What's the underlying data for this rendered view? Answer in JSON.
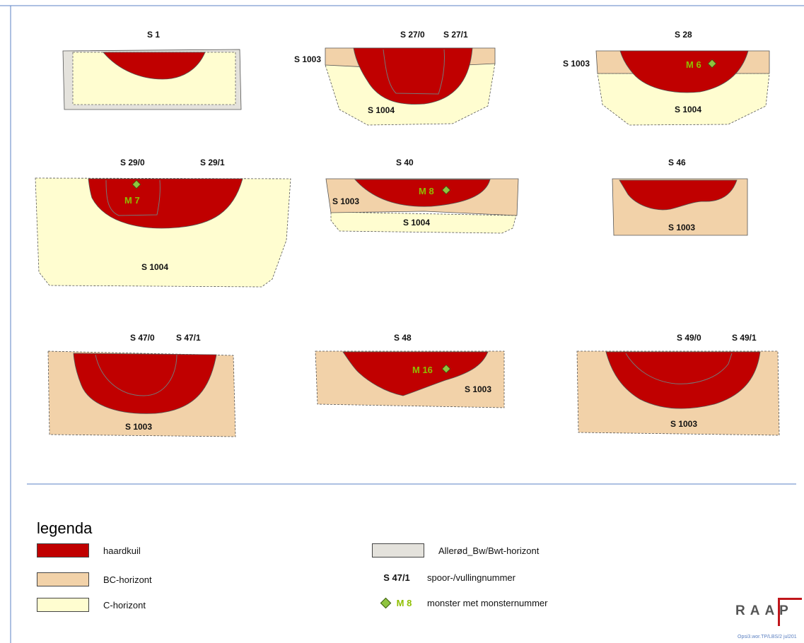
{
  "colors": {
    "haardkuil": "#c00000",
    "bc": "#f2d2a9",
    "c": "#fffdd0",
    "allerod": "#e4e2dc",
    "monster_label": "#8fbf00",
    "monster_marker": "#8fc43f",
    "frame": "#5b82c4"
  },
  "sections": {
    "s1": {
      "labels": [
        "S 1"
      ]
    },
    "s27": {
      "labels": [
        "S 27/0",
        "S 27/1",
        "S 1003",
        "S 1004"
      ]
    },
    "s28": {
      "labels": [
        "S 28",
        "S 1003",
        "S 1004"
      ],
      "monster": "M 6"
    },
    "s29": {
      "labels": [
        "S 29/0",
        "S 29/1",
        "S 1004"
      ],
      "monster": "M 7"
    },
    "s40": {
      "labels": [
        "S 40",
        "S 1003",
        "S 1004"
      ],
      "monster": "M 8"
    },
    "s46": {
      "labels": [
        "S 46",
        "S 1003"
      ]
    },
    "s47": {
      "labels": [
        "S 47/0",
        "S 47/1",
        "S 1003"
      ]
    },
    "s48": {
      "labels": [
        "S 48",
        "S 1003"
      ],
      "monster": "M 16"
    },
    "s49": {
      "labels": [
        "S 49/0",
        "S 49/1",
        "S 1003"
      ]
    }
  },
  "legend": {
    "title": "legenda",
    "items": [
      {
        "swatch": "haardkuil",
        "label": "haardkuil"
      },
      {
        "swatch": "bc",
        "label": "BC-horizont"
      },
      {
        "swatch": "c",
        "label": "C-horizont"
      },
      {
        "swatch": "allerod",
        "label": "Allerød_Bw/Bwt-horizont"
      }
    ],
    "spoor": {
      "code": "S 47/1",
      "label": "spoor-/vullingnummer"
    },
    "monster": {
      "code": "M 8",
      "label": "monster met monsternummer"
    }
  },
  "logo": {
    "text": "RAAP"
  },
  "footer": {
    "text": "Opsi3.wor.TP/LBS/2 jul201"
  }
}
